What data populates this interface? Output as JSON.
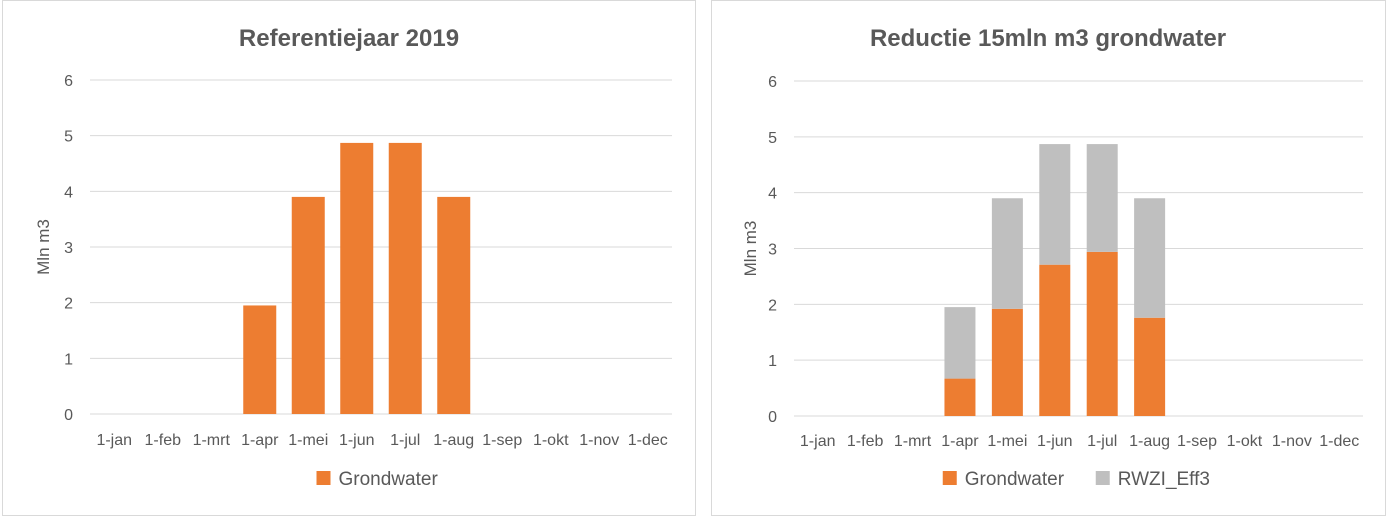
{
  "chart_data": [
    {
      "type": "bar",
      "stacked": false,
      "title": "Referentiejaar 2019",
      "xlabel": "",
      "ylabel": "Mln m3",
      "ylim": [
        0,
        6
      ],
      "yticks": [
        0,
        1,
        2,
        3,
        4,
        5,
        6
      ],
      "grid": true,
      "legend_position": "bottom",
      "categories": [
        "1-jan",
        "1-feb",
        "1-mrt",
        "1-apr",
        "1-mei",
        "1-jun",
        "1-jul",
        "1-aug",
        "1-sep",
        "1-okt",
        "1-nov",
        "1-dec"
      ],
      "series": [
        {
          "name": "Grondwater",
          "color": "#ed7d31",
          "values": [
            0,
            0,
            0,
            1.95,
            3.9,
            4.87,
            4.87,
            3.9,
            0,
            0,
            0,
            0
          ]
        }
      ]
    },
    {
      "type": "bar",
      "stacked": true,
      "title": "Reductie 15mln m3 grondwater",
      "xlabel": "",
      "ylabel": "Mln m3",
      "ylim": [
        0,
        6
      ],
      "yticks": [
        0,
        1,
        2,
        3,
        4,
        5,
        6
      ],
      "grid": true,
      "legend_position": "bottom",
      "categories": [
        "1-jan",
        "1-feb",
        "1-mrt",
        "1-apr",
        "1-mei",
        "1-jun",
        "1-jul",
        "1-aug",
        "1-sep",
        "1-okt",
        "1-nov",
        "1-dec"
      ],
      "series": [
        {
          "name": "Grondwater",
          "color": "#ed7d31",
          "values": [
            0,
            0,
            0,
            0.67,
            1.92,
            2.71,
            2.94,
            1.76,
            0,
            0,
            0,
            0
          ]
        },
        {
          "name": "RWZI_Eff3",
          "color": "#bfbfbf",
          "values": [
            0,
            0,
            0,
            1.28,
            1.98,
            2.16,
            1.93,
            2.14,
            0,
            0,
            0,
            0
          ]
        }
      ]
    }
  ]
}
